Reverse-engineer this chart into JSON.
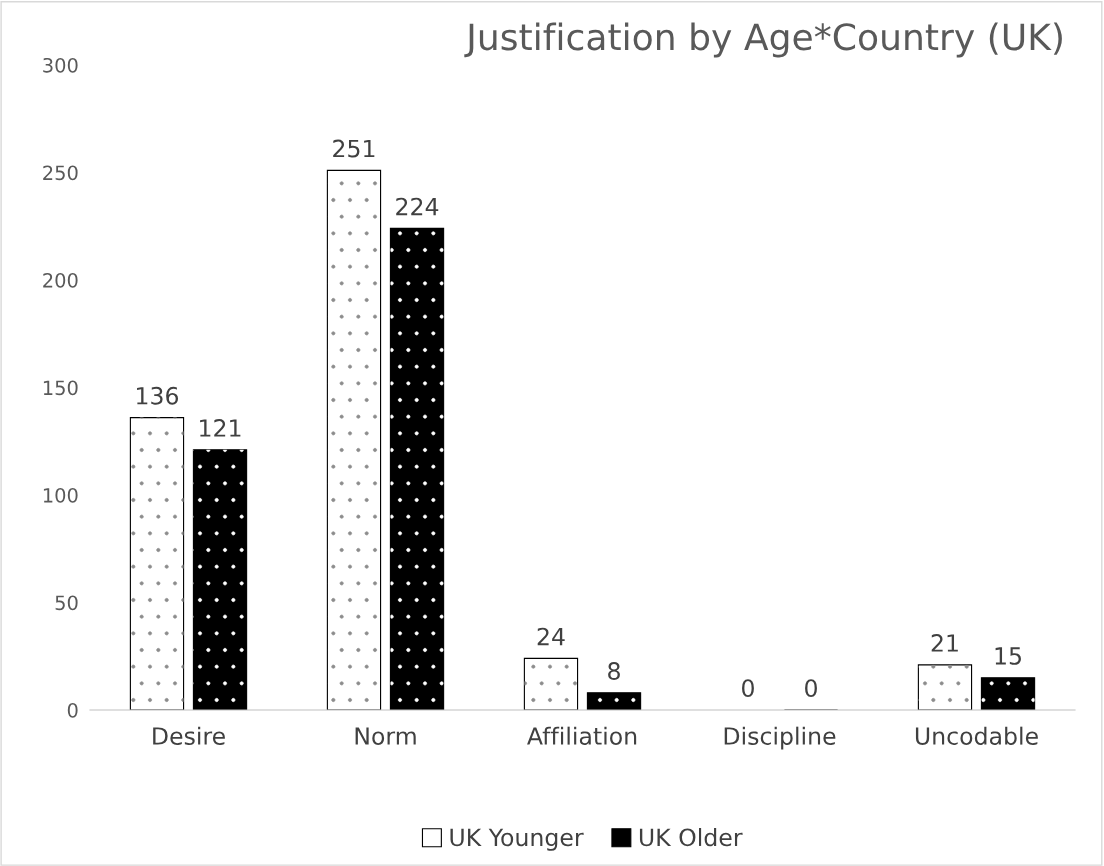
{
  "chart_data": {
    "type": "bar",
    "title": "Justification by Age*Country (UK)",
    "categories": [
      "Desire",
      "Norm",
      "Affiliation",
      "Discipline",
      "Uncodable"
    ],
    "series": [
      {
        "name": "UK Younger",
        "color": "#ffffff",
        "values": [
          136,
          251,
          24,
          0,
          21
        ]
      },
      {
        "name": "UK Older",
        "color": "#000000",
        "values": [
          121,
          224,
          8,
          0,
          15
        ]
      }
    ],
    "ylim": [
      0,
      300
    ],
    "yticks": [
      0,
      50,
      100,
      150,
      200,
      250,
      300
    ],
    "grid": false,
    "legend": "bottom",
    "data_labels": true
  }
}
